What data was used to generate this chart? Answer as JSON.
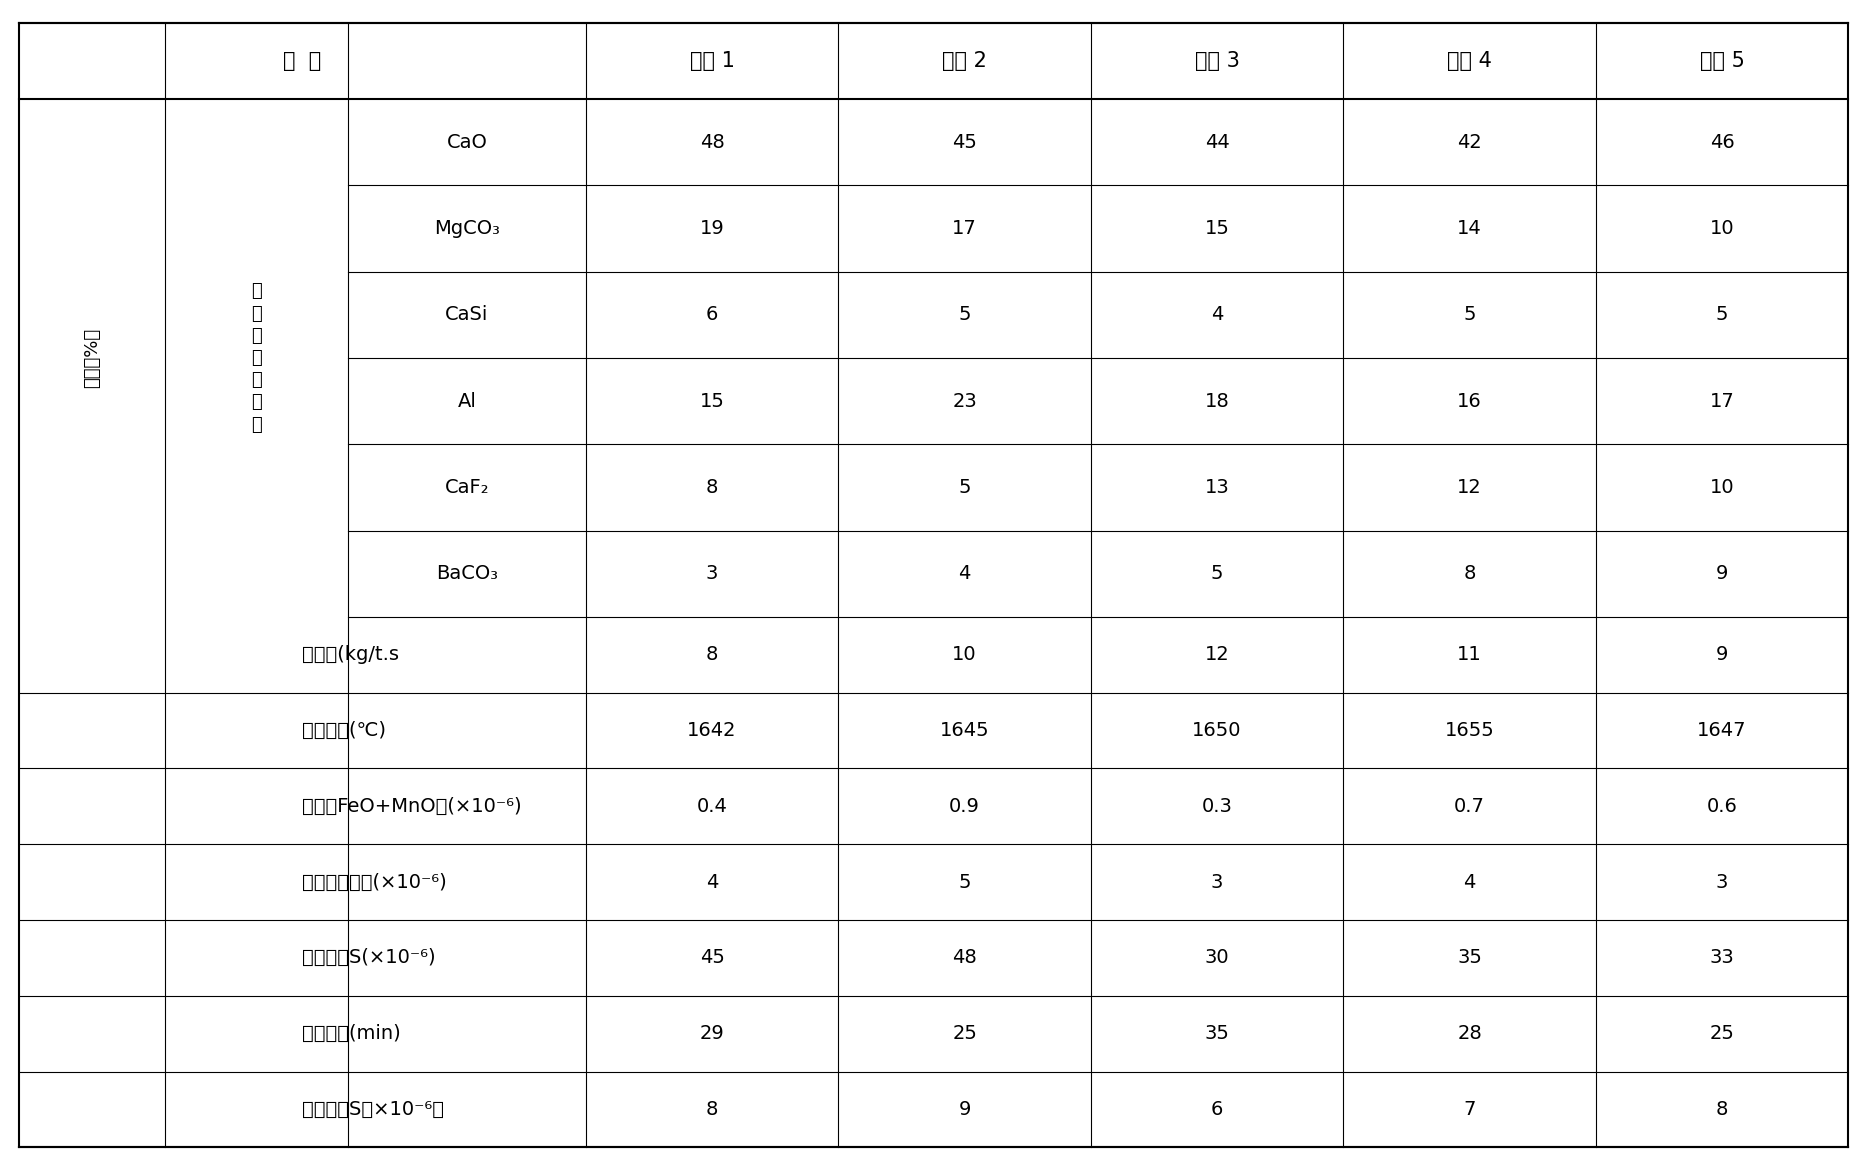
{
  "header_col1": "指  标",
  "columns": [
    "实例 1",
    "实例 2",
    "实例 3",
    "实例 4",
    "实例 5"
  ],
  "left_col_merged": "（重量%）",
  "middle_col_merged": "精\n炼\n渣\n化\n学\n成\n分",
  "components": [
    "CaO",
    "MgCO₃",
    "CaSi",
    "Al",
    "CaF₂",
    "BaCO₃"
  ],
  "component_values": [
    [
      "48",
      "45",
      "44",
      "42",
      "46"
    ],
    [
      "19",
      "17",
      "15",
      "14",
      "10"
    ],
    [
      "6",
      "5",
      "4",
      "5",
      "5"
    ],
    [
      "15",
      "23",
      "18",
      "16",
      "17"
    ],
    [
      "8",
      "5",
      "13",
      "12",
      "10"
    ],
    [
      "3",
      "4",
      "5",
      "8",
      "9"
    ]
  ],
  "bottom_rows": [
    {
      "label": "加入量(kg/t.s",
      "values": [
        "8",
        "10",
        "12",
        "11",
        "9"
      ]
    },
    {
      "label": "钢液温度(℃)",
      "values": [
        "1642",
        "1645",
        "1650",
        "1655",
        "1647"
      ]
    },
    {
      "label": "渣中（FeO+MnO）(×10⁻⁶)",
      "values": [
        "0.4",
        "0.9",
        "0.3",
        "0.7",
        "0.6"
      ]
    },
    {
      "label": "钢液初始氧势(×10⁻⁶)",
      "values": [
        "4",
        "5",
        "3",
        "4",
        "3"
      ]
    },
    {
      "label": "钢液初始S(×10⁻⁶)",
      "values": [
        "45",
        "48",
        "30",
        "35",
        "33"
      ]
    },
    {
      "label": "精炼时间(min)",
      "values": [
        "29",
        "25",
        "35",
        "28",
        "25"
      ]
    },
    {
      "label": "钢液终点S（×10⁻⁶）",
      "values": [
        "8",
        "9",
        "6",
        "7",
        "8"
      ]
    }
  ],
  "bg_color": "#ffffff",
  "text_color": "#000000",
  "line_color": "#000000",
  "font_size": 14,
  "header_font_size": 15
}
